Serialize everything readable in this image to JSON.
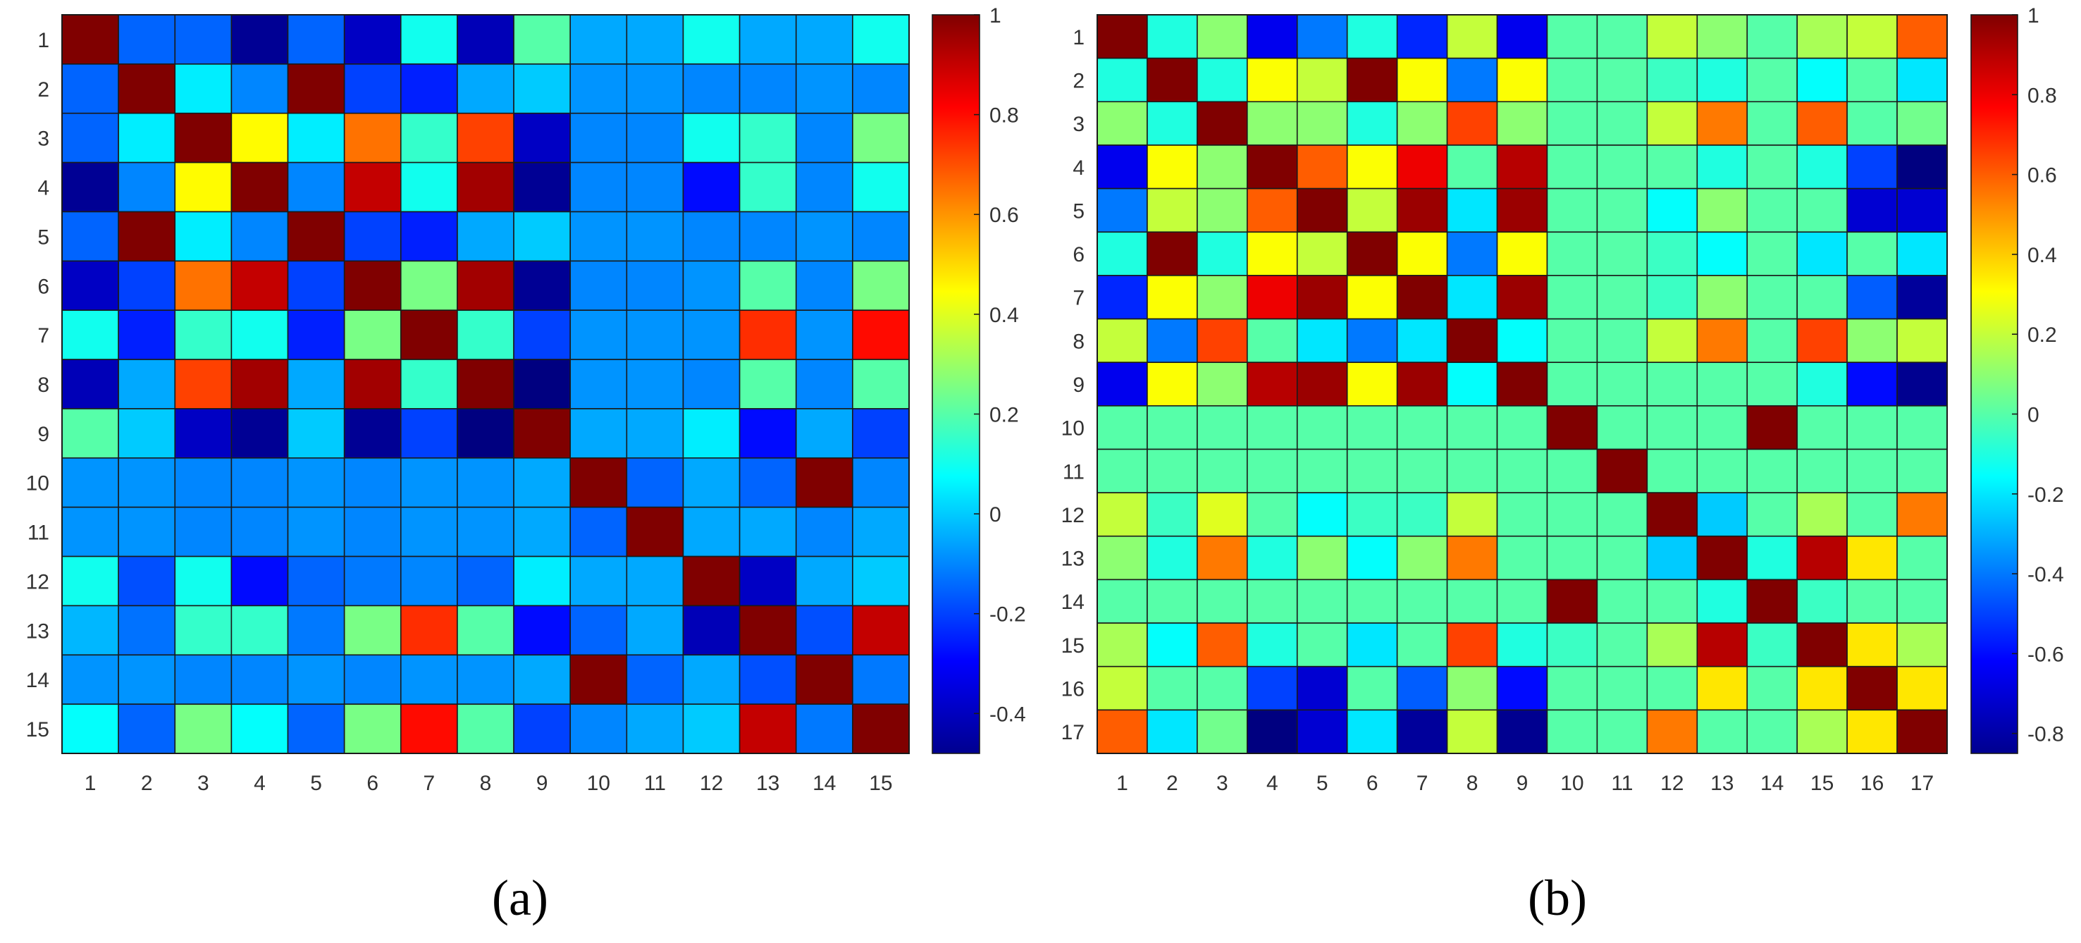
{
  "chart_data": [
    {
      "type": "heatmap",
      "panel_label": "(a)",
      "x_tick_labels": [
        "1",
        "2",
        "3",
        "4",
        "5",
        "6",
        "7",
        "8",
        "9",
        "10",
        "11",
        "12",
        "13",
        "14",
        "15"
      ],
      "y_tick_labels": [
        "1",
        "2",
        "3",
        "4",
        "5",
        "6",
        "7",
        "8",
        "9",
        "10",
        "11",
        "12",
        "13",
        "14",
        "15"
      ],
      "colorbar": {
        "colormap": "jet",
        "range": [
          -0.48,
          1.0
        ],
        "ticks": [
          "1",
          "0.8",
          "0.6",
          "0.4",
          "0.2",
          "0",
          "-0.2",
          "-0.4"
        ],
        "tick_values": [
          1,
          0.8,
          0.6,
          0.4,
          0.2,
          0,
          -0.2,
          -0.4
        ]
      },
      "grid": true,
      "values": [
        [
          1.0,
          -0.15,
          -0.15,
          -0.45,
          -0.15,
          -0.38,
          0.1,
          -0.4,
          0.2,
          -0.05,
          -0.05,
          0.1,
          -0.05,
          -0.05,
          0.1
        ],
        [
          -0.15,
          1.0,
          0.05,
          -0.1,
          1.0,
          -0.2,
          -0.25,
          -0.05,
          0.0,
          -0.08,
          -0.08,
          -0.1,
          -0.1,
          -0.08,
          -0.1
        ],
        [
          -0.15,
          0.05,
          1.0,
          0.45,
          0.05,
          0.65,
          0.15,
          0.72,
          -0.38,
          -0.1,
          -0.1,
          0.1,
          0.15,
          -0.1,
          0.25
        ],
        [
          -0.45,
          -0.1,
          0.45,
          1.0,
          -0.1,
          0.9,
          0.1,
          0.95,
          -0.45,
          -0.1,
          -0.1,
          -0.28,
          0.15,
          -0.1,
          0.1
        ],
        [
          -0.15,
          1.0,
          0.05,
          -0.1,
          1.0,
          -0.2,
          -0.25,
          -0.05,
          0.0,
          -0.08,
          -0.08,
          -0.1,
          -0.1,
          -0.08,
          -0.1
        ],
        [
          -0.38,
          -0.2,
          0.65,
          0.9,
          -0.2,
          1.0,
          0.25,
          0.95,
          -0.45,
          -0.1,
          -0.1,
          -0.08,
          0.2,
          -0.1,
          0.25
        ],
        [
          0.1,
          -0.25,
          0.15,
          0.1,
          -0.25,
          0.25,
          1.0,
          0.15,
          -0.2,
          -0.08,
          -0.08,
          -0.08,
          0.75,
          -0.08,
          0.8
        ],
        [
          -0.4,
          -0.05,
          0.72,
          0.95,
          -0.05,
          0.95,
          0.15,
          1.0,
          -0.48,
          -0.08,
          -0.08,
          -0.1,
          0.2,
          -0.1,
          0.2
        ],
        [
          0.2,
          0.0,
          -0.38,
          -0.45,
          0.0,
          -0.45,
          -0.2,
          -0.48,
          1.0,
          -0.05,
          -0.05,
          0.05,
          -0.28,
          -0.05,
          -0.2
        ],
        [
          -0.08,
          -0.08,
          -0.1,
          -0.1,
          -0.08,
          -0.1,
          -0.08,
          -0.08,
          -0.05,
          1.0,
          -0.15,
          -0.05,
          -0.15,
          1.0,
          -0.1
        ],
        [
          -0.08,
          -0.08,
          -0.1,
          -0.1,
          -0.08,
          -0.1,
          -0.08,
          -0.08,
          -0.05,
          -0.15,
          1.0,
          -0.05,
          -0.05,
          -0.1,
          -0.05
        ],
        [
          0.1,
          -0.18,
          0.1,
          -0.28,
          -0.15,
          -0.12,
          -0.1,
          -0.15,
          0.05,
          -0.05,
          -0.05,
          1.0,
          -0.38,
          -0.05,
          0.0
        ],
        [
          -0.03,
          -0.13,
          0.15,
          0.15,
          -0.12,
          0.25,
          0.75,
          0.2,
          -0.28,
          -0.15,
          -0.05,
          -0.4,
          1.0,
          -0.18,
          0.9
        ],
        [
          -0.08,
          -0.08,
          -0.1,
          -0.1,
          -0.08,
          -0.1,
          -0.08,
          -0.08,
          -0.05,
          1.0,
          -0.15,
          -0.05,
          -0.18,
          1.0,
          -0.12
        ],
        [
          0.08,
          -0.15,
          0.25,
          0.08,
          -0.15,
          0.25,
          0.8,
          0.2,
          -0.2,
          -0.1,
          -0.05,
          0.0,
          0.9,
          -0.12,
          1.0
        ]
      ]
    },
    {
      "type": "heatmap",
      "panel_label": "(b)",
      "x_tick_labels": [
        "1",
        "2",
        "3",
        "4",
        "5",
        "6",
        "7",
        "8",
        "9",
        "10",
        "11",
        "12",
        "13",
        "14",
        "15",
        "16",
        "17"
      ],
      "y_tick_labels": [
        "1",
        "2",
        "3",
        "4",
        "5",
        "6",
        "7",
        "8",
        "9",
        "10",
        "11",
        "12",
        "13",
        "14",
        "15",
        "16",
        "17"
      ],
      "colorbar": {
        "colormap": "jet",
        "range": [
          -0.85,
          1.0
        ],
        "ticks": [
          "1",
          "0.8",
          "0.6",
          "0.4",
          "0.2",
          "0",
          "-0.2",
          "-0.4",
          "-0.6",
          "-0.8"
        ],
        "tick_values": [
          1,
          0.8,
          0.6,
          0.4,
          0.2,
          0,
          -0.2,
          -0.4,
          -0.6,
          -0.8
        ]
      },
      "grid": true,
      "values": [
        [
          1.0,
          -0.1,
          0.1,
          -0.65,
          -0.4,
          -0.1,
          -0.55,
          0.2,
          -0.65,
          0.0,
          0.0,
          0.2,
          0.1,
          0.0,
          0.15,
          0.2,
          0.6
        ],
        [
          -0.1,
          1.0,
          -0.1,
          0.3,
          0.2,
          1.0,
          0.3,
          -0.4,
          0.3,
          0.0,
          0.0,
          -0.05,
          -0.1,
          0.0,
          -0.15,
          0.0,
          -0.2
        ],
        [
          0.1,
          -0.1,
          1.0,
          0.1,
          0.1,
          -0.1,
          0.1,
          0.65,
          0.1,
          0.0,
          0.0,
          0.2,
          0.55,
          0.0,
          0.6,
          0.0,
          0.05
        ],
        [
          -0.65,
          0.3,
          0.1,
          1.0,
          0.6,
          0.3,
          0.8,
          0.0,
          0.9,
          0.0,
          0.0,
          0.0,
          -0.1,
          0.0,
          -0.1,
          -0.5,
          -0.85
        ],
        [
          -0.4,
          0.2,
          0.1,
          0.6,
          1.0,
          0.2,
          0.95,
          -0.2,
          0.95,
          0.0,
          0.0,
          -0.15,
          0.1,
          0.0,
          0.0,
          -0.7,
          -0.7
        ],
        [
          -0.1,
          1.0,
          -0.1,
          0.3,
          0.2,
          1.0,
          0.3,
          -0.4,
          0.3,
          0.0,
          0.0,
          -0.05,
          -0.15,
          0.0,
          -0.2,
          0.0,
          -0.2
        ],
        [
          -0.55,
          0.3,
          0.1,
          0.8,
          0.95,
          0.3,
          1.0,
          -0.2,
          0.95,
          0.0,
          0.0,
          -0.05,
          0.1,
          0.0,
          0.0,
          -0.45,
          -0.8
        ],
        [
          0.2,
          -0.4,
          0.65,
          0.0,
          -0.2,
          -0.4,
          -0.2,
          1.0,
          -0.15,
          0.0,
          0.0,
          0.2,
          0.55,
          0.0,
          0.65,
          0.1,
          0.2
        ],
        [
          -0.65,
          0.3,
          0.1,
          0.9,
          0.95,
          0.3,
          0.95,
          -0.15,
          1.0,
          0.0,
          0.0,
          0.0,
          0.0,
          0.0,
          -0.1,
          -0.6,
          -0.82
        ],
        [
          0.0,
          0.0,
          0.0,
          0.0,
          0.0,
          0.0,
          0.0,
          0.0,
          0.0,
          1.0,
          0.0,
          0.0,
          0.0,
          1.0,
          0.0,
          0.0,
          0.0
        ],
        [
          0.0,
          0.0,
          0.0,
          0.0,
          0.0,
          0.0,
          0.0,
          0.0,
          0.0,
          0.0,
          1.0,
          0.0,
          0.0,
          0.0,
          0.0,
          0.0,
          0.0
        ],
        [
          0.2,
          -0.05,
          0.25,
          0.0,
          -0.15,
          -0.05,
          -0.05,
          0.2,
          0.0,
          0.0,
          0.0,
          1.0,
          -0.25,
          0.0,
          0.15,
          0.0,
          0.55
        ],
        [
          0.1,
          -0.1,
          0.55,
          -0.1,
          0.1,
          -0.15,
          0.1,
          0.55,
          0.0,
          0.0,
          0.0,
          -0.25,
          1.0,
          -0.1,
          0.9,
          0.35,
          0.0
        ],
        [
          0.0,
          0.0,
          0.0,
          0.0,
          0.0,
          0.0,
          0.0,
          0.0,
          0.0,
          1.0,
          0.0,
          0.0,
          -0.1,
          1.0,
          -0.05,
          0.0,
          0.0
        ],
        [
          0.15,
          -0.15,
          0.6,
          -0.1,
          0.0,
          -0.2,
          0.0,
          0.65,
          -0.1,
          -0.05,
          0.0,
          0.15,
          0.9,
          -0.05,
          1.0,
          0.35,
          0.15
        ],
        [
          0.2,
          0.0,
          0.0,
          -0.5,
          -0.7,
          0.0,
          -0.45,
          0.1,
          -0.6,
          0.0,
          0.0,
          0.0,
          0.35,
          0.0,
          0.35,
          1.0,
          0.35
        ],
        [
          0.6,
          -0.2,
          0.05,
          -0.85,
          -0.7,
          -0.2,
          -0.8,
          0.2,
          -0.82,
          0.0,
          0.0,
          0.55,
          0.0,
          0.0,
          0.15,
          0.35,
          1.0
        ]
      ]
    }
  ]
}
